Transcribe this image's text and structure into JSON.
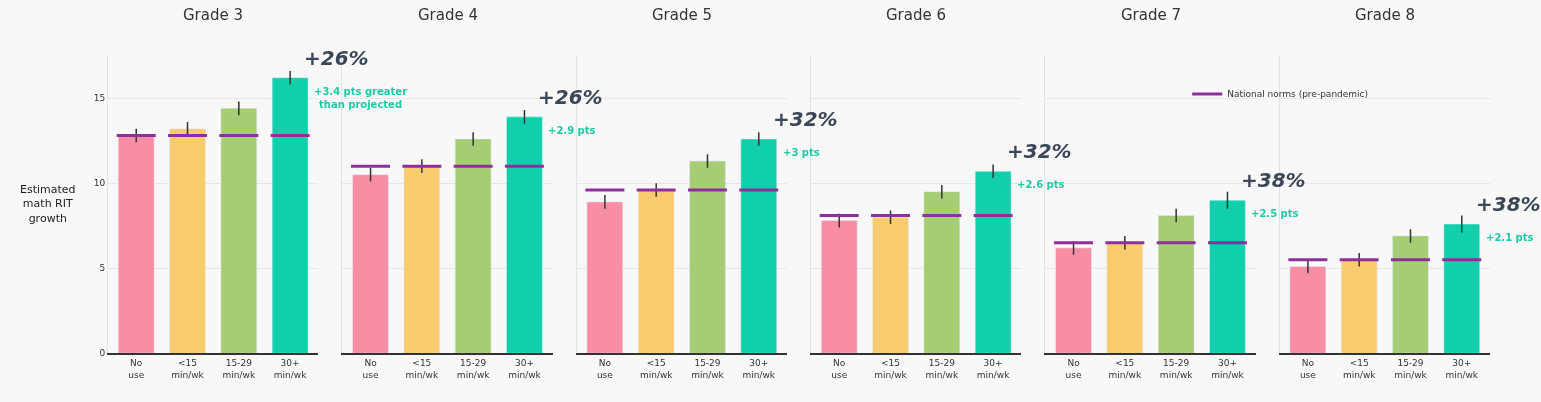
{
  "chart_data": [
    {
      "type": "bar",
      "title": "Grade 3",
      "ylabel": "Estimated\nmath RIT\ngrowth",
      "categories": [
        "No use",
        "<15 min/wk",
        "15-29 min/wk",
        "30+ min/wk"
      ],
      "values": [
        12.8,
        13.2,
        14.4,
        16.2
      ],
      "errors": [
        0.4,
        0.4,
        0.4,
        0.4
      ],
      "colors": [
        "#f78ea3",
        "#f7cb6e",
        "#a6cc74",
        "#12cfac"
      ],
      "ylim": [
        0,
        17.5
      ],
      "yticks": [
        0,
        5,
        10,
        15
      ],
      "grid": "y",
      "tick_labels": "xy",
      "ref_lines": [
        {
          "axis": "y",
          "value": 12.8,
          "color": "#8e2f9c"
        }
      ],
      "annotations": [
        {
          "text": "+26%",
          "x": "30+ min/wk",
          "y": 16.2
        },
        {
          "text": "+3.4 pts greater\nthan projected",
          "x": "30+ min/wk",
          "y": 16.2
        }
      ]
    },
    {
      "type": "bar",
      "title": "Grade 4",
      "categories": [
        "No use",
        "<15 min/wk",
        "15-29 min/wk",
        "30+ min/wk"
      ],
      "values": [
        10.5,
        11.0,
        12.6,
        13.9
      ],
      "errors": [
        0.4,
        0.4,
        0.4,
        0.4
      ],
      "colors": [
        "#f78ea3",
        "#f7cb6e",
        "#a6cc74",
        "#12cfac"
      ],
      "ylim": [
        0,
        17.5
      ],
      "yticks": [
        0,
        5,
        10,
        15
      ],
      "grid": "y",
      "tick_labels": "x",
      "ref_lines": [
        {
          "axis": "y",
          "value": 11.0,
          "color": "#8e2f9c"
        }
      ],
      "annotations": [
        {
          "text": "+26%",
          "x": "30+ min/wk",
          "y": 13.9
        },
        {
          "text": "+2.9 pts",
          "x": "30+ min/wk",
          "y": 13.9
        }
      ]
    },
    {
      "type": "bar",
      "title": "Grade 5",
      "categories": [
        "No use",
        "<15 min/wk",
        "15-29 min/wk",
        "30+ min/wk"
      ],
      "values": [
        8.9,
        9.6,
        11.3,
        12.6
      ],
      "errors": [
        0.4,
        0.4,
        0.4,
        0.4
      ],
      "colors": [
        "#f78ea3",
        "#f7cb6e",
        "#a6cc74",
        "#12cfac"
      ],
      "ylim": [
        0,
        17.5
      ],
      "yticks": [
        0,
        5,
        10,
        15
      ],
      "grid": "y",
      "tick_labels": "x",
      "ref_lines": [
        {
          "axis": "y",
          "value": 9.6,
          "color": "#8e2f9c"
        }
      ],
      "annotations": [
        {
          "text": "+32%",
          "x": "30+ min/wk",
          "y": 12.6
        },
        {
          "text": "+3 pts",
          "x": "30+ min/wk",
          "y": 12.6
        }
      ]
    },
    {
      "type": "bar",
      "title": "Grade 6",
      "categories": [
        "No use",
        "<15 min/wk",
        "15-29 min/wk",
        "30+ min/wk"
      ],
      "values": [
        7.8,
        8.0,
        9.5,
        10.7
      ],
      "errors": [
        0.4,
        0.4,
        0.4,
        0.4
      ],
      "colors": [
        "#f78ea3",
        "#f7cb6e",
        "#a6cc74",
        "#12cfac"
      ],
      "ylim": [
        0,
        17.5
      ],
      "yticks": [
        0,
        5,
        10,
        15
      ],
      "grid": "y",
      "tick_labels": "x",
      "ref_lines": [
        {
          "axis": "y",
          "value": 8.1,
          "color": "#8e2f9c"
        }
      ],
      "annotations": [
        {
          "text": "+32%",
          "x": "30+ min/wk",
          "y": 10.7
        },
        {
          "text": "+2.6 pts",
          "x": "30+ min/wk",
          "y": 10.7
        }
      ]
    },
    {
      "type": "bar",
      "title": "Grade 7",
      "categories": [
        "No use",
        "<15 min/wk",
        "15-29 min/wk",
        "30+ min/wk"
      ],
      "values": [
        6.2,
        6.5,
        8.1,
        9.0
      ],
      "errors": [
        0.4,
        0.4,
        0.4,
        0.5
      ],
      "colors": [
        "#f78ea3",
        "#f7cb6e",
        "#a6cc74",
        "#12cfac"
      ],
      "ylim": [
        0,
        17.5
      ],
      "yticks": [
        0,
        5,
        10,
        15
      ],
      "grid": "y",
      "tick_labels": "x",
      "ref_lines": [
        {
          "axis": "y",
          "value": 6.5,
          "color": "#8e2f9c"
        }
      ],
      "annotations": [
        {
          "text": "+38%",
          "x": "30+ min/wk",
          "y": 9.0
        },
        {
          "text": "+2.5 pts",
          "x": "30+ min/wk",
          "y": 9.0
        }
      ]
    },
    {
      "type": "bar",
      "title": "Grade 8",
      "categories": [
        "No use",
        "<15 min/wk",
        "15-29 min/wk",
        "30+ min/wk"
      ],
      "values": [
        5.1,
        5.5,
        6.9,
        7.6
      ],
      "errors": [
        0.4,
        0.4,
        0.4,
        0.5
      ],
      "colors": [
        "#f78ea3",
        "#f7cb6e",
        "#a6cc74",
        "#12cfac"
      ],
      "ylim": [
        0,
        17.5
      ],
      "yticks": [
        0,
        5,
        10,
        15
      ],
      "grid": "y",
      "tick_labels": "x",
      "legend": "top left",
      "ref_lines": [
        {
          "axis": "y",
          "value": 5.5,
          "color": "#8e2f9c",
          "label": "National norms (pre-pandemic)"
        }
      ],
      "annotations": [
        {
          "text": "+38%",
          "x": "30+ min/wk",
          "y": 7.6
        },
        {
          "text": "+2.1 pts",
          "x": "30+ min/wk",
          "y": 7.6
        }
      ]
    }
  ]
}
